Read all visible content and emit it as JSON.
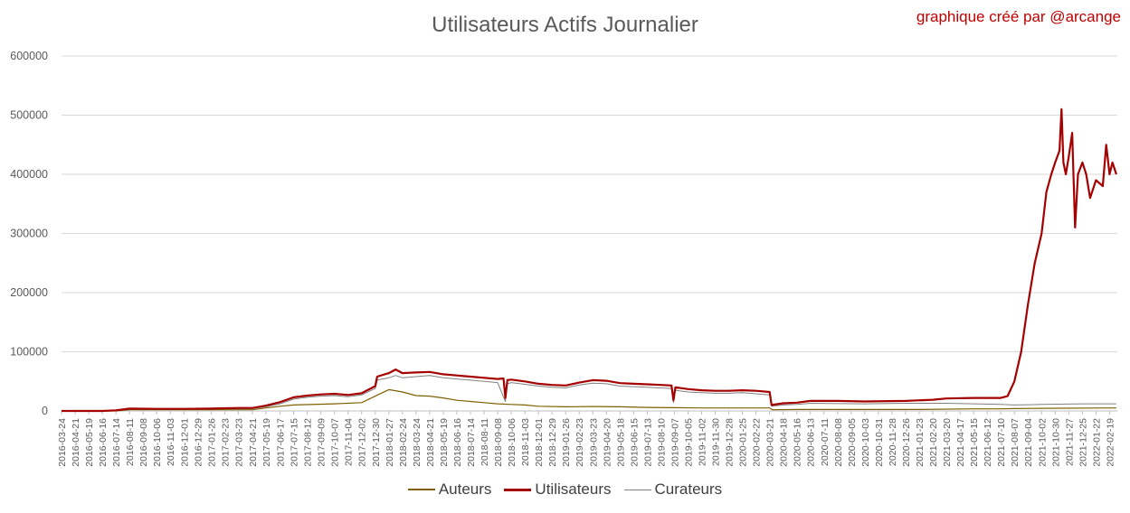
{
  "chart_data": {
    "type": "line",
    "title": "Utilisateurs Actifs Journalier",
    "credit": "graphique créé par @arcange",
    "xlabel": "",
    "ylabel": "",
    "ylim": [
      0,
      600000
    ],
    "yticks": [
      0,
      100000,
      200000,
      300000,
      400000,
      500000,
      600000
    ],
    "grid": true,
    "legend_position": "bottom",
    "x_tick_labels": [
      "2016-03-24",
      "2016-04-21",
      "2016-05-19",
      "2016-06-16",
      "2016-07-14",
      "2016-08-11",
      "2016-09-08",
      "2016-10-06",
      "2016-11-03",
      "2016-12-01",
      "2016-12-29",
      "2017-01-26",
      "2017-02-23",
      "2017-03-23",
      "2017-04-21",
      "2017-05-19",
      "2017-06-17",
      "2017-07-15",
      "2017-08-12",
      "2017-09-09",
      "2017-10-07",
      "2017-11-04",
      "2017-12-02",
      "2017-12-30",
      "2018-01-27",
      "2018-02-24",
      "2018-03-24",
      "2018-04-21",
      "2018-05-19",
      "2018-06-16",
      "2018-07-14",
      "2018-08-11",
      "2018-09-08",
      "2018-10-06",
      "2018-11-03",
      "2018-12-01",
      "2018-12-29",
      "2019-01-26",
      "2019-02-23",
      "2019-03-23",
      "2019-04-20",
      "2019-05-18",
      "2019-06-15",
      "2019-07-13",
      "2019-08-10",
      "2019-09-07",
      "2019-10-05",
      "2019-11-02",
      "2019-11-30",
      "2019-12-28",
      "2020-01-25",
      "2020-02-22",
      "2020-03-21",
      "2020-04-18",
      "2020-05-16",
      "2020-06-13",
      "2020-07-11",
      "2020-08-08",
      "2020-09-05",
      "2020-10-03",
      "2020-10-31",
      "2020-11-28",
      "2020-12-26",
      "2021-01-23",
      "2021-02-20",
      "2021-03-20",
      "2021-04-17",
      "2021-05-15",
      "2021-06-12",
      "2021-07-10",
      "2021-08-07",
      "2021-09-04",
      "2021-10-02",
      "2021-10-30",
      "2021-11-27",
      "2021-12-25",
      "2022-01-22",
      "2022-02-19"
    ],
    "x_tick_labels_shown": [
      "2016-03-24",
      "2016-04-21",
      "2016-05-19",
      "2016-06-16",
      "2016-07-14",
      "2016-08-11",
      "2016-09-08",
      "2016-10-06",
      "2016-11-03",
      "2016-12-01",
      "2016-12-29",
      "2017-01-26",
      "2017-02-23",
      "2017-03-23",
      "2017-04-21",
      "2017-05-19",
      "2017-06-17",
      "2017-07-15",
      "2017-08-12",
      "2017-09-09",
      "2017-10-07",
      "2017-11-04",
      "2017-12-02",
      "2017-12-30",
      "2018-01-27",
      "2018-02-24",
      "2018-03-24",
      "2018-04-21",
      "2018-05-19",
      "2018-06-16",
      "2018-07-14",
      "2018-08-11",
      "2018-09-08",
      "2018-10-06",
      "2018-11-03",
      "2018-12-01",
      "2018-12-29",
      "2019-01-26",
      "2019-02-23",
      "2019-03-23",
      "2019-04-20",
      "2019-05-18",
      "2019-06-15",
      "2019-07-13",
      "2019-08-10",
      "2019-09-07",
      "2019-10-05",
      "2019-11-02",
      "2019-11-30",
      "2019-12-28",
      "2020-01-25",
      "2020-02-22",
      "2020-03-21",
      "2020-04-18",
      "2020-05-16",
      "2020-06-13",
      "2020-07-11",
      "2020-08-08",
      "2020-09-05",
      "2020-10-03",
      "2020-10-31",
      "2020-11-28",
      "2020-12-26",
      "2021-01-23",
      "2021-02-20",
      "2021-03-20",
      "2021-04-17",
      "2021-05-15",
      "2021-06-12",
      "2021-07-10",
      "2021-08-07",
      "2021-09-04",
      "2021-10-02",
      "2021-10-30",
      "2021-11-27",
      "2021-12-25",
      "2022-01-22",
      "2022-02-19"
    ],
    "series": [
      {
        "name": "Auteurs",
        "color": "#7f6000",
        "points": [
          [
            "2016-03-24",
            0
          ],
          [
            "2016-07-14",
            0
          ],
          [
            "2016-08-11",
            2000
          ],
          [
            "2017-01-26",
            2000
          ],
          [
            "2017-04-21",
            2000
          ],
          [
            "2017-05-19",
            5000
          ],
          [
            "2017-06-17",
            8000
          ],
          [
            "2017-07-15",
            10000
          ],
          [
            "2017-10-07",
            12000
          ],
          [
            "2017-12-02",
            14000
          ],
          [
            "2017-12-30",
            25000
          ],
          [
            "2018-01-27",
            36000
          ],
          [
            "2018-02-24",
            32000
          ],
          [
            "2018-03-24",
            26000
          ],
          [
            "2018-04-21",
            25000
          ],
          [
            "2018-05-19",
            22000
          ],
          [
            "2018-06-16",
            18000
          ],
          [
            "2018-07-14",
            16000
          ],
          [
            "2018-08-11",
            14000
          ],
          [
            "2018-09-08",
            12000
          ],
          [
            "2018-10-06",
            11000
          ],
          [
            "2018-11-03",
            10000
          ],
          [
            "2018-12-01",
            8000
          ],
          [
            "2019-01-26",
            7000
          ],
          [
            "2019-03-23",
            7500
          ],
          [
            "2019-05-18",
            7000
          ],
          [
            "2019-07-13",
            6000
          ],
          [
            "2019-09-07",
            5500
          ],
          [
            "2019-11-02",
            5000
          ],
          [
            "2020-01-25",
            5000
          ],
          [
            "2020-03-21",
            5000
          ],
          [
            "2020-03-27",
            2000
          ],
          [
            "2020-05-16",
            2500
          ],
          [
            "2020-10-03",
            2500
          ],
          [
            "2021-01-23",
            2500
          ],
          [
            "2021-05-15",
            3500
          ],
          [
            "2021-07-10",
            3500
          ],
          [
            "2021-08-07",
            4000
          ],
          [
            "2021-10-02",
            4500
          ],
          [
            "2022-02-19",
            5000
          ],
          [
            "2022-03-05",
            5000
          ]
        ]
      },
      {
        "name": "Utilisateurs",
        "color": "#a50000",
        "points": [
          [
            "2016-03-24",
            0
          ],
          [
            "2016-06-16",
            0
          ],
          [
            "2016-07-14",
            1000
          ],
          [
            "2016-08-11",
            4000
          ],
          [
            "2016-10-06",
            3500
          ],
          [
            "2016-12-01",
            3500
          ],
          [
            "2017-01-26",
            4000
          ],
          [
            "2017-03-23",
            5000
          ],
          [
            "2017-04-21",
            5000
          ],
          [
            "2017-05-19",
            9000
          ],
          [
            "2017-06-17",
            15000
          ],
          [
            "2017-07-15",
            23000
          ],
          [
            "2017-08-12",
            26000
          ],
          [
            "2017-09-09",
            28000
          ],
          [
            "2017-10-07",
            29000
          ],
          [
            "2017-11-04",
            27000
          ],
          [
            "2017-12-02",
            30000
          ],
          [
            "2017-12-30",
            42000
          ],
          [
            "2018-01-03",
            58000
          ],
          [
            "2018-01-27",
            64000
          ],
          [
            "2018-02-10",
            70000
          ],
          [
            "2018-02-24",
            64000
          ],
          [
            "2018-03-24",
            65000
          ],
          [
            "2018-04-21",
            66000
          ],
          [
            "2018-05-19",
            62000
          ],
          [
            "2018-06-16",
            60000
          ],
          [
            "2018-07-14",
            58000
          ],
          [
            "2018-08-11",
            56000
          ],
          [
            "2018-09-08",
            54000
          ],
          [
            "2018-09-20",
            55000
          ],
          [
            "2018-09-24",
            22000
          ],
          [
            "2018-09-28",
            52000
          ],
          [
            "2018-10-06",
            53000
          ],
          [
            "2018-11-03",
            50000
          ],
          [
            "2018-12-01",
            46000
          ],
          [
            "2018-12-29",
            44000
          ],
          [
            "2019-01-26",
            43000
          ],
          [
            "2019-02-23",
            48000
          ],
          [
            "2019-03-23",
            52000
          ],
          [
            "2019-04-20",
            51000
          ],
          [
            "2019-05-18",
            47000
          ],
          [
            "2019-06-15",
            46000
          ],
          [
            "2019-07-13",
            45000
          ],
          [
            "2019-08-10",
            44000
          ],
          [
            "2019-09-01",
            43000
          ],
          [
            "2019-09-05",
            18000
          ],
          [
            "2019-09-09",
            40000
          ],
          [
            "2019-10-05",
            37000
          ],
          [
            "2019-11-02",
            35000
          ],
          [
            "2019-11-30",
            34000
          ],
          [
            "2019-12-28",
            34000
          ],
          [
            "2020-01-25",
            35000
          ],
          [
            "2020-02-22",
            34000
          ],
          [
            "2020-03-21",
            32000
          ],
          [
            "2020-03-25",
            10000
          ],
          [
            "2020-04-18",
            13000
          ],
          [
            "2020-05-16",
            14000
          ],
          [
            "2020-06-13",
            17000
          ],
          [
            "2020-08-08",
            17000
          ],
          [
            "2020-10-03",
            16000
          ],
          [
            "2020-12-26",
            17000
          ],
          [
            "2021-02-20",
            19000
          ],
          [
            "2021-03-20",
            21000
          ],
          [
            "2021-05-15",
            22000
          ],
          [
            "2021-07-10",
            22000
          ],
          [
            "2021-07-24",
            25000
          ],
          [
            "2021-08-07",
            50000
          ],
          [
            "2021-08-21",
            100000
          ],
          [
            "2021-09-04",
            180000
          ],
          [
            "2021-09-18",
            250000
          ],
          [
            "2021-10-02",
            300000
          ],
          [
            "2021-10-12",
            370000
          ],
          [
            "2021-10-22",
            400000
          ],
          [
            "2021-10-30",
            420000
          ],
          [
            "2021-11-08",
            440000
          ],
          [
            "2021-11-12",
            510000
          ],
          [
            "2021-11-16",
            420000
          ],
          [
            "2021-11-21",
            400000
          ],
          [
            "2021-11-27",
            430000
          ],
          [
            "2021-12-04",
            470000
          ],
          [
            "2021-12-10",
            310000
          ],
          [
            "2021-12-16",
            400000
          ],
          [
            "2021-12-25",
            420000
          ],
          [
            "2022-01-02",
            400000
          ],
          [
            "2022-01-10",
            360000
          ],
          [
            "2022-01-22",
            390000
          ],
          [
            "2022-02-05",
            380000
          ],
          [
            "2022-02-12",
            450000
          ],
          [
            "2022-02-19",
            400000
          ],
          [
            "2022-02-25",
            420000
          ],
          [
            "2022-03-05",
            400000
          ]
        ]
      },
      {
        "name": "Curateurs",
        "color": "#808080",
        "points": [
          [
            "2016-03-24",
            0
          ],
          [
            "2016-06-16",
            0
          ],
          [
            "2016-07-14",
            1000
          ],
          [
            "2016-08-11",
            3000
          ],
          [
            "2016-12-01",
            3000
          ],
          [
            "2017-04-21",
            4000
          ],
          [
            "2017-05-19",
            7000
          ],
          [
            "2017-06-17",
            12000
          ],
          [
            "2017-07-15",
            20000
          ],
          [
            "2017-08-12",
            23000
          ],
          [
            "2017-09-09",
            25000
          ],
          [
            "2017-10-07",
            26000
          ],
          [
            "2017-11-04",
            24000
          ],
          [
            "2017-12-02",
            27000
          ],
          [
            "2017-12-30",
            38000
          ],
          [
            "2018-01-03",
            52000
          ],
          [
            "2018-01-27",
            56000
          ],
          [
            "2018-02-10",
            60000
          ],
          [
            "2018-02-24",
            56000
          ],
          [
            "2018-03-24",
            58000
          ],
          [
            "2018-04-21",
            60000
          ],
          [
            "2018-05-19",
            56000
          ],
          [
            "2018-06-16",
            54000
          ],
          [
            "2018-07-14",
            52000
          ],
          [
            "2018-08-11",
            50000
          ],
          [
            "2018-09-08",
            48000
          ],
          [
            "2018-09-24",
            16000
          ],
          [
            "2018-09-28",
            46000
          ],
          [
            "2018-10-06",
            48000
          ],
          [
            "2018-11-03",
            45000
          ],
          [
            "2018-12-01",
            42000
          ],
          [
            "2018-12-29",
            40000
          ],
          [
            "2019-01-26",
            39000
          ],
          [
            "2019-02-23",
            44000
          ],
          [
            "2019-03-23",
            47000
          ],
          [
            "2019-04-20",
            46000
          ],
          [
            "2019-05-18",
            42000
          ],
          [
            "2019-06-15",
            41000
          ],
          [
            "2019-07-13",
            40000
          ],
          [
            "2019-08-10",
            39000
          ],
          [
            "2019-09-01",
            38000
          ],
          [
            "2019-09-05",
            14000
          ],
          [
            "2019-09-09",
            35000
          ],
          [
            "2019-10-05",
            32000
          ],
          [
            "2019-11-02",
            31000
          ],
          [
            "2019-11-30",
            30000
          ],
          [
            "2019-12-28",
            30000
          ],
          [
            "2020-01-25",
            31000
          ],
          [
            "2020-02-22",
            29000
          ],
          [
            "2020-03-21",
            27000
          ],
          [
            "2020-03-25",
            8000
          ],
          [
            "2020-04-18",
            10000
          ],
          [
            "2020-05-16",
            11000
          ],
          [
            "2020-06-13",
            13000
          ],
          [
            "2020-10-03",
            12000
          ],
          [
            "2020-12-26",
            13000
          ],
          [
            "2021-03-20",
            13000
          ],
          [
            "2021-07-10",
            11000
          ],
          [
            "2021-08-07",
            10000
          ],
          [
            "2021-10-02",
            11000
          ],
          [
            "2021-12-25",
            12000
          ],
          [
            "2022-02-19",
            12000
          ],
          [
            "2022-03-05",
            12000
          ]
        ]
      }
    ]
  }
}
